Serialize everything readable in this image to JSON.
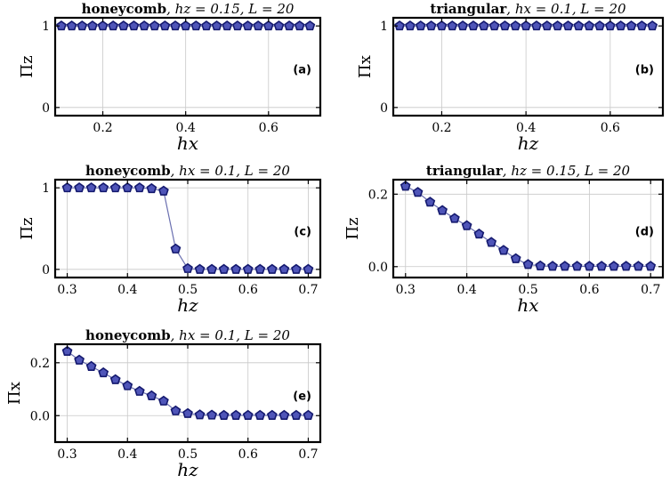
{
  "chart_data": [
    {
      "panel": "(a)",
      "type": "line",
      "title": "honeycomb, h_z = 0.15, L = 20",
      "title_bold": "honeycomb",
      "title_params": ", hz = 0.15, L = 20",
      "xlabel": "hx",
      "ylabel": "Πz",
      "xlim": [
        0.085,
        0.725
      ],
      "ylim": [
        -0.1,
        1.1
      ],
      "xticks": [
        0.2,
        0.4,
        0.6
      ],
      "xtick_labels": [
        "0.2",
        "0.4",
        "0.6"
      ],
      "yticks": [
        0,
        1
      ],
      "ytick_labels": [
        "0",
        "1"
      ],
      "x": [
        0.1,
        0.125,
        0.15,
        0.175,
        0.2,
        0.225,
        0.25,
        0.275,
        0.3,
        0.325,
        0.35,
        0.375,
        0.4,
        0.425,
        0.45,
        0.475,
        0.5,
        0.525,
        0.55,
        0.575,
        0.6,
        0.625,
        0.65,
        0.675,
        0.7
      ],
      "y": [
        1,
        1,
        1,
        1,
        1,
        1,
        1,
        1,
        1,
        1,
        1,
        1,
        1,
        1,
        1,
        1,
        1,
        1,
        1,
        1,
        1,
        1,
        1,
        1,
        1
      ]
    },
    {
      "panel": "(b)",
      "type": "line",
      "title": "triangular, h_x = 0.1, L = 20",
      "title_bold": "triangular",
      "title_params": ", hx = 0.1, L = 20",
      "xlabel": "hz",
      "ylabel": "Πx",
      "xlim": [
        0.085,
        0.725
      ],
      "ylim": [
        -0.1,
        1.1
      ],
      "xticks": [
        0.2,
        0.4,
        0.6
      ],
      "xtick_labels": [
        "0.2",
        "0.4",
        "0.6"
      ],
      "yticks": [
        0,
        1
      ],
      "ytick_labels": [
        "0",
        "1"
      ],
      "x": [
        0.1,
        0.125,
        0.15,
        0.175,
        0.2,
        0.225,
        0.25,
        0.275,
        0.3,
        0.325,
        0.35,
        0.375,
        0.4,
        0.425,
        0.45,
        0.475,
        0.5,
        0.525,
        0.55,
        0.575,
        0.6,
        0.625,
        0.65,
        0.675,
        0.7
      ],
      "y": [
        1,
        1,
        1,
        1,
        1,
        1,
        1,
        1,
        1,
        1,
        1,
        1,
        1,
        1,
        1,
        1,
        1,
        1,
        1,
        1,
        1,
        1,
        1,
        1,
        1
      ]
    },
    {
      "panel": "(c)",
      "type": "line",
      "title": "honeycomb, h_x = 0.1, L = 20",
      "title_bold": "honeycomb",
      "title_params": ", hx = 0.1, L = 20",
      "xlabel": "hz",
      "ylabel": "Πz",
      "xlim": [
        0.28,
        0.72
      ],
      "ylim": [
        -0.1,
        1.1
      ],
      "xticks": [
        0.3,
        0.4,
        0.5,
        0.6,
        0.7
      ],
      "xtick_labels": [
        "0.3",
        "0.4",
        "0.5",
        "0.6",
        "0.7"
      ],
      "yticks": [
        0,
        1
      ],
      "ytick_labels": [
        "0",
        "1"
      ],
      "x": [
        0.3,
        0.32,
        0.34,
        0.36,
        0.38,
        0.4,
        0.42,
        0.44,
        0.46,
        0.48,
        0.5,
        0.52,
        0.54,
        0.56,
        0.58,
        0.6,
        0.62,
        0.64,
        0.66,
        0.68,
        0.7
      ],
      "y": [
        1,
        1,
        1,
        1,
        1,
        1,
        1,
        0.99,
        0.96,
        0.25,
        0.01,
        0,
        0,
        0,
        0,
        0,
        0,
        0,
        0,
        0,
        0
      ]
    },
    {
      "panel": "(d)",
      "type": "line",
      "title": "triangular, h_z = 0.15, L = 20",
      "title_bold": "triangular",
      "title_params": ", hz = 0.15, L = 20",
      "xlabel": "hx",
      "ylabel": "Πz",
      "xlim": [
        0.28,
        0.72
      ],
      "ylim": [
        -0.03,
        0.24
      ],
      "xticks": [
        0.3,
        0.4,
        0.5,
        0.6,
        0.7
      ],
      "xtick_labels": [
        "0.3",
        "0.4",
        "0.5",
        "0.6",
        "0.7"
      ],
      "yticks": [
        0.0,
        0.2
      ],
      "ytick_labels": [
        "0.0",
        "0.2"
      ],
      "x": [
        0.3,
        0.32,
        0.34,
        0.36,
        0.38,
        0.4,
        0.42,
        0.44,
        0.46,
        0.48,
        0.5,
        0.52,
        0.54,
        0.56,
        0.58,
        0.6,
        0.62,
        0.64,
        0.66,
        0.68,
        0.7
      ],
      "y": [
        0.222,
        0.205,
        0.178,
        0.155,
        0.133,
        0.113,
        0.09,
        0.067,
        0.045,
        0.022,
        0.006,
        0.002,
        0.001,
        0.001,
        0.001,
        0.001,
        0.001,
        0.001,
        0.001,
        0.001,
        0.001
      ]
    },
    {
      "panel": "(e)",
      "type": "line",
      "title": "honeycomb, h_x = 0.1, L = 20",
      "title_bold": "honeycomb",
      "title_params": ", hx = 0.1, L = 20",
      "xlabel": "hz",
      "ylabel": "Πx",
      "xlim": [
        0.28,
        0.72
      ],
      "ylim": [
        -0.1,
        0.27
      ],
      "xticks": [
        0.3,
        0.4,
        0.5,
        0.6,
        0.7
      ],
      "xtick_labels": [
        "0.3",
        "0.4",
        "0.5",
        "0.6",
        "0.7"
      ],
      "yticks": [
        0.0,
        0.2
      ],
      "ytick_labels": [
        "0.0",
        "0.2"
      ],
      "x": [
        0.3,
        0.32,
        0.34,
        0.36,
        0.38,
        0.4,
        0.42,
        0.44,
        0.46,
        0.48,
        0.5,
        0.52,
        0.54,
        0.56,
        0.58,
        0.6,
        0.62,
        0.64,
        0.66,
        0.68,
        0.7
      ],
      "y": [
        0.243,
        0.21,
        0.186,
        0.162,
        0.136,
        0.113,
        0.092,
        0.075,
        0.055,
        0.018,
        0.008,
        0.003,
        0.002,
        0.001,
        0.001,
        0.001,
        0.001,
        0.001,
        0.001,
        0.001,
        0.001
      ]
    }
  ],
  "colors": {
    "marker_fill": "#4f55b8",
    "marker_edge": "#14196e",
    "line": "#6a6fb0",
    "grid": "#c8c8c8",
    "frame": "#000000"
  }
}
